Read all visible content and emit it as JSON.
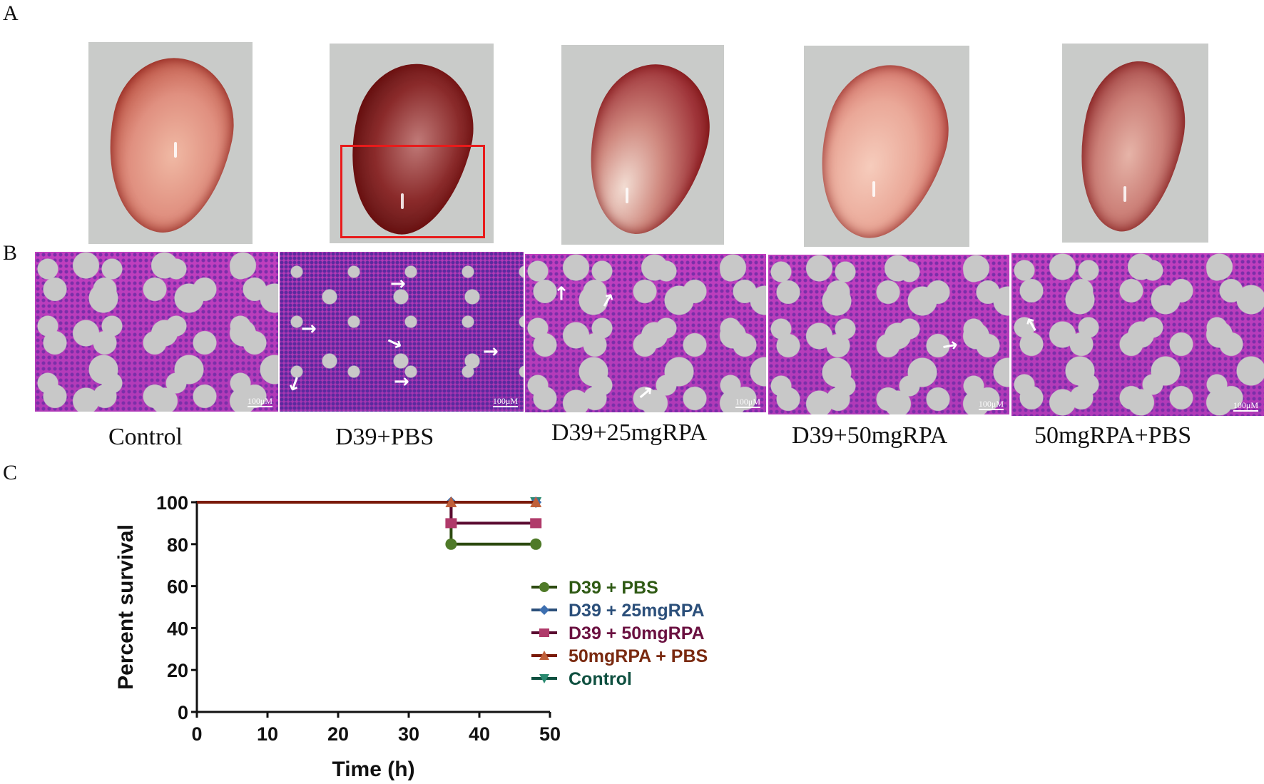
{
  "figure": {
    "panel_letters": [
      "A",
      "B",
      "C"
    ],
    "groups": [
      "Control",
      "D39+PBS",
      "D39+25mgRPA",
      "D39+50mgRPA",
      "50mgRPA+PBS"
    ],
    "panel_a": {
      "description": "Gross lung photographs per group",
      "highlight_box_color": "#e81b1b",
      "highlight_group": "D39+PBS"
    },
    "panel_b": {
      "description": "H&E stained lung sections per group",
      "scale_bar_label": "100μM"
    }
  },
  "chart_data": {
    "type": "line",
    "subtype": "kaplan-meier step survival",
    "title": "",
    "xlabel": "Time (h)",
    "ylabel": "Percent survival",
    "xlim": [
      0,
      50
    ],
    "ylim": [
      0,
      100
    ],
    "x_ticks": [
      0,
      10,
      20,
      30,
      40,
      50
    ],
    "y_ticks": [
      0,
      20,
      40,
      60,
      80,
      100
    ],
    "grid": false,
    "legend_position": "right-middle",
    "series": [
      {
        "name": "D39 + PBS",
        "color": "#4f7a28",
        "text_color": "#2f5a14",
        "line_color": "#2d4a10",
        "marker": "circle",
        "x": [
          0,
          36,
          48
        ],
        "y": [
          100,
          80,
          80
        ]
      },
      {
        "name": "D39 + 25mgRPA",
        "color": "#3d6fb0",
        "text_color": "#2b4f7a",
        "line_color": "#2b4f7a",
        "marker": "diamond",
        "x": [
          0,
          36,
          48
        ],
        "y": [
          100,
          100,
          100
        ]
      },
      {
        "name": "D39 + 50mgRPA",
        "color": "#b03a6a",
        "text_color": "#6a1040",
        "line_color": "#5a0a30",
        "marker": "square",
        "x": [
          0,
          36,
          48
        ],
        "y": [
          100,
          90,
          90
        ]
      },
      {
        "name": "50mgRPA + PBS",
        "color": "#c0603a",
        "text_color": "#7a2a10",
        "line_color": "#7a1a08",
        "marker": "triangle-up",
        "x": [
          0,
          36,
          48
        ],
        "y": [
          100,
          100,
          100
        ]
      },
      {
        "name": "Control",
        "color": "#2a8a70",
        "text_color": "#0f5040",
        "line_color": "#0f5040",
        "marker": "triangle-down",
        "x": [
          0,
          48
        ],
        "y": [
          100,
          100
        ]
      }
    ]
  }
}
